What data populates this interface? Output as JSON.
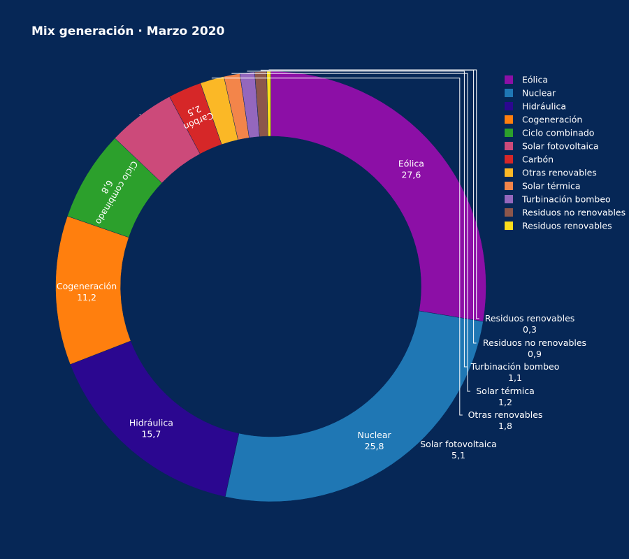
{
  "chart_data": {
    "type": "pie",
    "hole": true,
    "title": "Mix generación · Marzo 2020",
    "legend_position": "top-right",
    "slices": [
      {
        "label": "Eólica",
        "value": 27.6,
        "value_text": "27,6",
        "color": "#8c0fa6"
      },
      {
        "label": "Nuclear",
        "value": 25.8,
        "value_text": "25,8",
        "color": "#1f77b4"
      },
      {
        "label": "Hidráulica",
        "value": 15.7,
        "value_text": "15,7",
        "color": "#2b0790"
      },
      {
        "label": "Cogeneración",
        "value": 11.2,
        "value_text": "11,2",
        "color": "#ff7f0e"
      },
      {
        "label": "Ciclo combinado",
        "value": 6.8,
        "value_text": "6,8",
        "color": "#2ca02c"
      },
      {
        "label": "Solar fotovoltaica",
        "value": 5.1,
        "value_text": "5,1",
        "color": "#cc4a7a"
      },
      {
        "label": "Carbón",
        "value": 2.5,
        "value_text": "2,5",
        "color": "#d62728"
      },
      {
        "label": "Otras renovables",
        "value": 1.8,
        "value_text": "1,8",
        "color": "#fbb826"
      },
      {
        "label": "Solar térmica",
        "value": 1.2,
        "value_text": "1,2",
        "color": "#f3854a"
      },
      {
        "label": "Turbinación bombeo",
        "value": 1.1,
        "value_text": "1,1",
        "color": "#9467bd"
      },
      {
        "label": "Residuos no renovables",
        "value": 0.9,
        "value_text": "0,9",
        "color": "#8c564b"
      },
      {
        "label": "Residuos renovables",
        "value": 0.3,
        "value_text": "0,3",
        "color": "#fadd1b"
      }
    ]
  }
}
